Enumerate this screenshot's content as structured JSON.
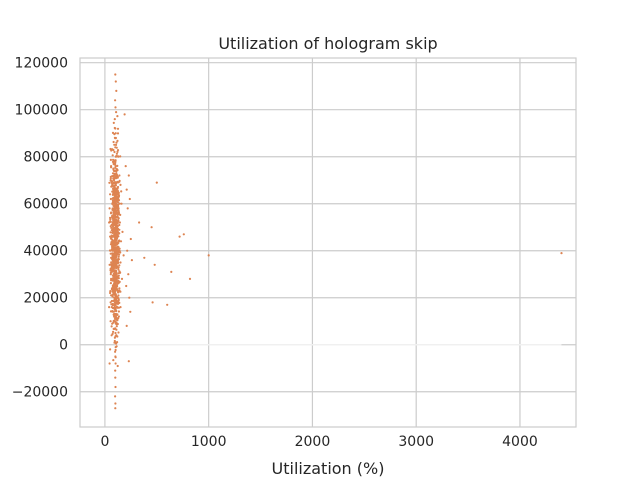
{
  "chart_data": {
    "type": "scatter",
    "title": "Utilization of hologram skip",
    "xlabel": "Utilization (%)",
    "ylabel": "",
    "xlim": [
      -240,
      4540
    ],
    "ylim": [
      -35000,
      122000
    ],
    "xticks": [
      0,
      1000,
      2000,
      3000,
      4000
    ],
    "yticks": [
      -20000,
      0,
      20000,
      40000,
      60000,
      80000,
      100000,
      120000
    ],
    "xtick_labels": [
      "0",
      "1000",
      "2000",
      "3000",
      "4000"
    ],
    "ytick_labels": [
      "−20000",
      "0",
      "20000",
      "40000",
      "60000",
      "80000",
      "100000",
      "120000"
    ],
    "grid": true,
    "colors": {
      "points": "#dd8452",
      "baseline": "#f0f0f0",
      "grid": "#cccccc",
      "text": "#262626"
    },
    "series": [
      {
        "points": [
          [
            100,
            115000
          ],
          [
            105,
            112000
          ],
          [
            110,
            108000
          ],
          [
            98,
            104000
          ],
          [
            102,
            101000
          ],
          [
            108,
            99000
          ],
          [
            95,
            96000
          ],
          [
            100,
            92000
          ],
          [
            104,
            90000
          ],
          [
            96,
            88000
          ],
          [
            112,
            86000
          ],
          [
            100,
            84000
          ],
          [
            92,
            82000
          ],
          [
            106,
            80000
          ],
          [
            99,
            78000
          ],
          [
            103,
            76000
          ],
          [
            88,
            74000
          ],
          [
            110,
            73000
          ],
          [
            97,
            71000
          ],
          [
            101,
            69000
          ],
          [
            93,
            67000
          ],
          [
            105,
            65000
          ],
          [
            99,
            63000
          ],
          [
            107,
            61000
          ],
          [
            91,
            59000
          ],
          [
            102,
            57000
          ],
          [
            96,
            55000
          ],
          [
            104,
            53000
          ],
          [
            99,
            51000
          ],
          [
            90,
            49000
          ],
          [
            108,
            47000
          ],
          [
            100,
            45000
          ],
          [
            94,
            43000
          ],
          [
            106,
            41000
          ],
          [
            98,
            39000
          ],
          [
            102,
            37000
          ],
          [
            95,
            35000
          ],
          [
            109,
            33000
          ],
          [
            100,
            31000
          ],
          [
            92,
            29000
          ],
          [
            104,
            27000
          ],
          [
            97,
            25000
          ],
          [
            101,
            23000
          ],
          [
            106,
            21000
          ],
          [
            99,
            19000
          ],
          [
            95,
            17000
          ],
          [
            103,
            15000
          ],
          [
            100,
            13000
          ],
          [
            97,
            11000
          ],
          [
            105,
            9000
          ],
          [
            99,
            7000
          ],
          [
            102,
            5000
          ],
          [
            96,
            3000
          ],
          [
            100,
            1000
          ],
          [
            104,
            -1000
          ],
          [
            98,
            -3000
          ],
          [
            101,
            -5000
          ],
          [
            103,
            -8000
          ],
          [
            99,
            -11000
          ],
          [
            100,
            -14000
          ],
          [
            102,
            -18000
          ],
          [
            98,
            -22000
          ],
          [
            101,
            -25000
          ],
          [
            100,
            -27000
          ],
          [
            130,
            80000
          ],
          [
            140,
            72000
          ],
          [
            150,
            68000
          ],
          [
            125,
            64000
          ],
          [
            160,
            60000
          ],
          [
            135,
            56000
          ],
          [
            145,
            52000
          ],
          [
            170,
            48000
          ],
          [
            155,
            44000
          ],
          [
            140,
            40000
          ],
          [
            180,
            38000
          ],
          [
            150,
            35000
          ],
          [
            130,
            32000
          ],
          [
            165,
            28000
          ],
          [
            140,
            24000
          ],
          [
            125,
            20000
          ],
          [
            150,
            16000
          ],
          [
            135,
            12000
          ],
          [
            60,
            76000
          ],
          [
            55,
            70000
          ],
          [
            50,
            64000
          ],
          [
            45,
            58000
          ],
          [
            40,
            52000
          ],
          [
            50,
            46000
          ],
          [
            55,
            40000
          ],
          [
            45,
            34000
          ],
          [
            60,
            28000
          ],
          [
            50,
            22000
          ],
          [
            40,
            16000
          ],
          [
            55,
            10000
          ],
          [
            65,
            4000
          ],
          [
            50,
            -2000
          ],
          [
            45,
            -8000
          ],
          [
            70,
            68000
          ],
          [
            75,
            55000
          ],
          [
            200,
            76000
          ],
          [
            230,
            72000
          ],
          [
            210,
            66000
          ],
          [
            240,
            62000
          ],
          [
            220,
            58000
          ],
          [
            250,
            45000
          ],
          [
            215,
            40000
          ],
          [
            260,
            36000
          ],
          [
            225,
            30000
          ],
          [
            205,
            25000
          ],
          [
            235,
            20000
          ],
          [
            245,
            14000
          ],
          [
            210,
            8000
          ],
          [
            230,
            -7000
          ],
          [
            190,
            98000
          ],
          [
            330,
            52000
          ],
          [
            380,
            37000
          ],
          [
            450,
            50000
          ],
          [
            480,
            34000
          ],
          [
            460,
            18000
          ],
          [
            500,
            69000
          ],
          [
            600,
            17000
          ],
          [
            640,
            31000
          ],
          [
            720,
            46000
          ],
          [
            760,
            47000
          ],
          [
            820,
            28000
          ],
          [
            1000,
            38000
          ],
          [
            4400,
            39000
          ]
        ]
      }
    ]
  }
}
